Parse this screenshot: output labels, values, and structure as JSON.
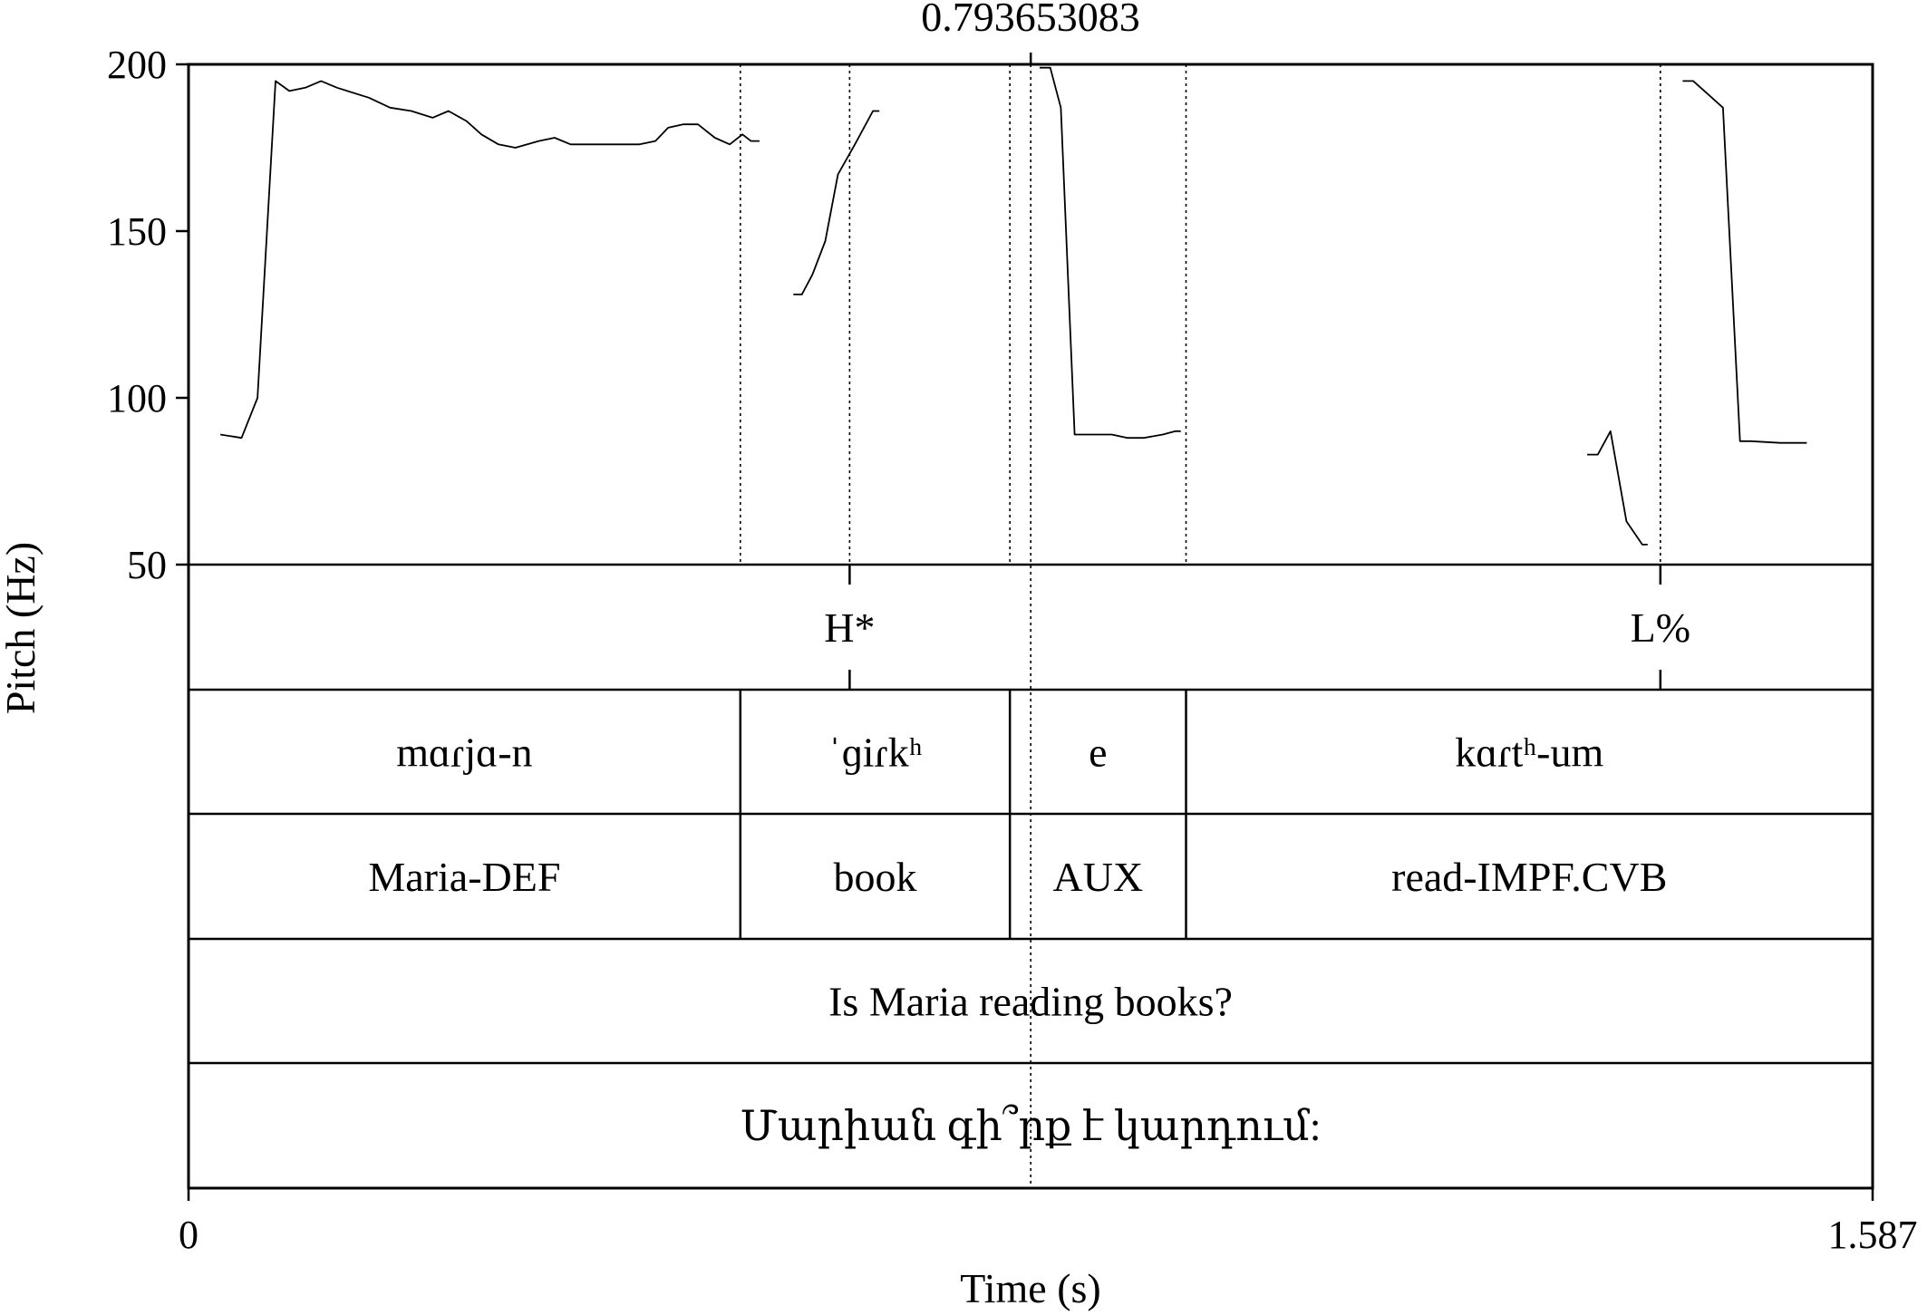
{
  "chart_data": {
    "type": "line",
    "cursor_label": "0.793653083",
    "cursor_time": 0.793653083,
    "ylabel": "Pitch (Hz)",
    "xlabel": "Time (s)",
    "xlim": [
      0,
      1.587
    ],
    "ylim": [
      50,
      200
    ],
    "x_tick_labels": [
      "0",
      "1.587"
    ],
    "y_ticks": [
      200,
      150,
      100,
      50
    ],
    "series": [
      {
        "values": [
          [
            0.03,
            89
          ],
          [
            0.05,
            88
          ],
          [
            0.065,
            100
          ],
          [
            0.082,
            195
          ],
          [
            0.095,
            192
          ],
          [
            0.11,
            193
          ],
          [
            0.125,
            195
          ],
          [
            0.14,
            193
          ],
          [
            0.17,
            190
          ],
          [
            0.19,
            187
          ],
          [
            0.21,
            186
          ],
          [
            0.23,
            184
          ],
          [
            0.245,
            186
          ],
          [
            0.262,
            183
          ],
          [
            0.276,
            179
          ],
          [
            0.292,
            176
          ],
          [
            0.308,
            175
          ],
          [
            0.33,
            177
          ],
          [
            0.345,
            178
          ],
          [
            0.36,
            176
          ],
          [
            0.4,
            176
          ],
          [
            0.425,
            176
          ],
          [
            0.44,
            177
          ],
          [
            0.452,
            181
          ],
          [
            0.466,
            182
          ],
          [
            0.48,
            182
          ],
          [
            0.496,
            178
          ],
          [
            0.51,
            176
          ],
          [
            0.522,
            179
          ],
          [
            0.53,
            177
          ],
          [
            0.538,
            177
          ]
        ]
      },
      {
        "values": [
          [
            0.57,
            131
          ],
          [
            0.578,
            131
          ],
          [
            0.588,
            137
          ],
          [
            0.6,
            147
          ],
          [
            0.612,
            167
          ],
          [
            0.628,
            176
          ],
          [
            0.645,
            186
          ],
          [
            0.651,
            186
          ]
        ]
      },
      {
        "values": [
          [
            0.802,
            199
          ],
          [
            0.812,
            199
          ],
          [
            0.822,
            187
          ],
          [
            0.835,
            89
          ],
          [
            0.855,
            89
          ],
          [
            0.87,
            89
          ],
          [
            0.885,
            88
          ],
          [
            0.9,
            88
          ],
          [
            0.918,
            89
          ],
          [
            0.93,
            90
          ],
          [
            0.935,
            90
          ]
        ]
      },
      {
        "values": [
          [
            1.318,
            83
          ],
          [
            1.328,
            83
          ],
          [
            1.34,
            90
          ],
          [
            1.355,
            63
          ],
          [
            1.37,
            56
          ],
          [
            1.375,
            56
          ]
        ]
      },
      {
        "values": [
          [
            1.408,
            195
          ],
          [
            1.418,
            195
          ],
          [
            1.432,
            191
          ],
          [
            1.446,
            187
          ],
          [
            1.462,
            87
          ],
          [
            1.472,
            87
          ],
          [
            1.5,
            86.5
          ],
          [
            1.525,
            86.5
          ]
        ]
      }
    ],
    "boundaries": [
      0.52,
      0.774,
      0.94
    ],
    "tiers": [
      {
        "points": [
          {
            "time": 0.623,
            "label": "H*"
          },
          {
            "time": 1.387,
            "label": "L%"
          }
        ]
      },
      {
        "intervals": [
          {
            "start": 0,
            "end": 0.52,
            "label": "mɑɾjɑ-n"
          },
          {
            "start": 0.52,
            "end": 0.774,
            "label": "ˈɡiɾkʰ"
          },
          {
            "start": 0.774,
            "end": 0.94,
            "label": "e"
          },
          {
            "start": 0.94,
            "end": 1.587,
            "label": "kɑɾtʰ-um"
          }
        ]
      },
      {
        "intervals": [
          {
            "start": 0,
            "end": 0.52,
            "label": "Maria-DEF"
          },
          {
            "start": 0.52,
            "end": 0.774,
            "label": "book"
          },
          {
            "start": 0.774,
            "end": 0.94,
            "label": "AUX"
          },
          {
            "start": 0.94,
            "end": 1.587,
            "label": "read-IMPF.CVB"
          }
        ]
      },
      {
        "intervals": [
          {
            "start": 0,
            "end": 1.587,
            "label": "Is Maria reading books?"
          }
        ]
      },
      {
        "intervals": [
          {
            "start": 0,
            "end": 1.587,
            "label": "Մարիան գի՞րք է կարդում:"
          }
        ]
      }
    ]
  }
}
